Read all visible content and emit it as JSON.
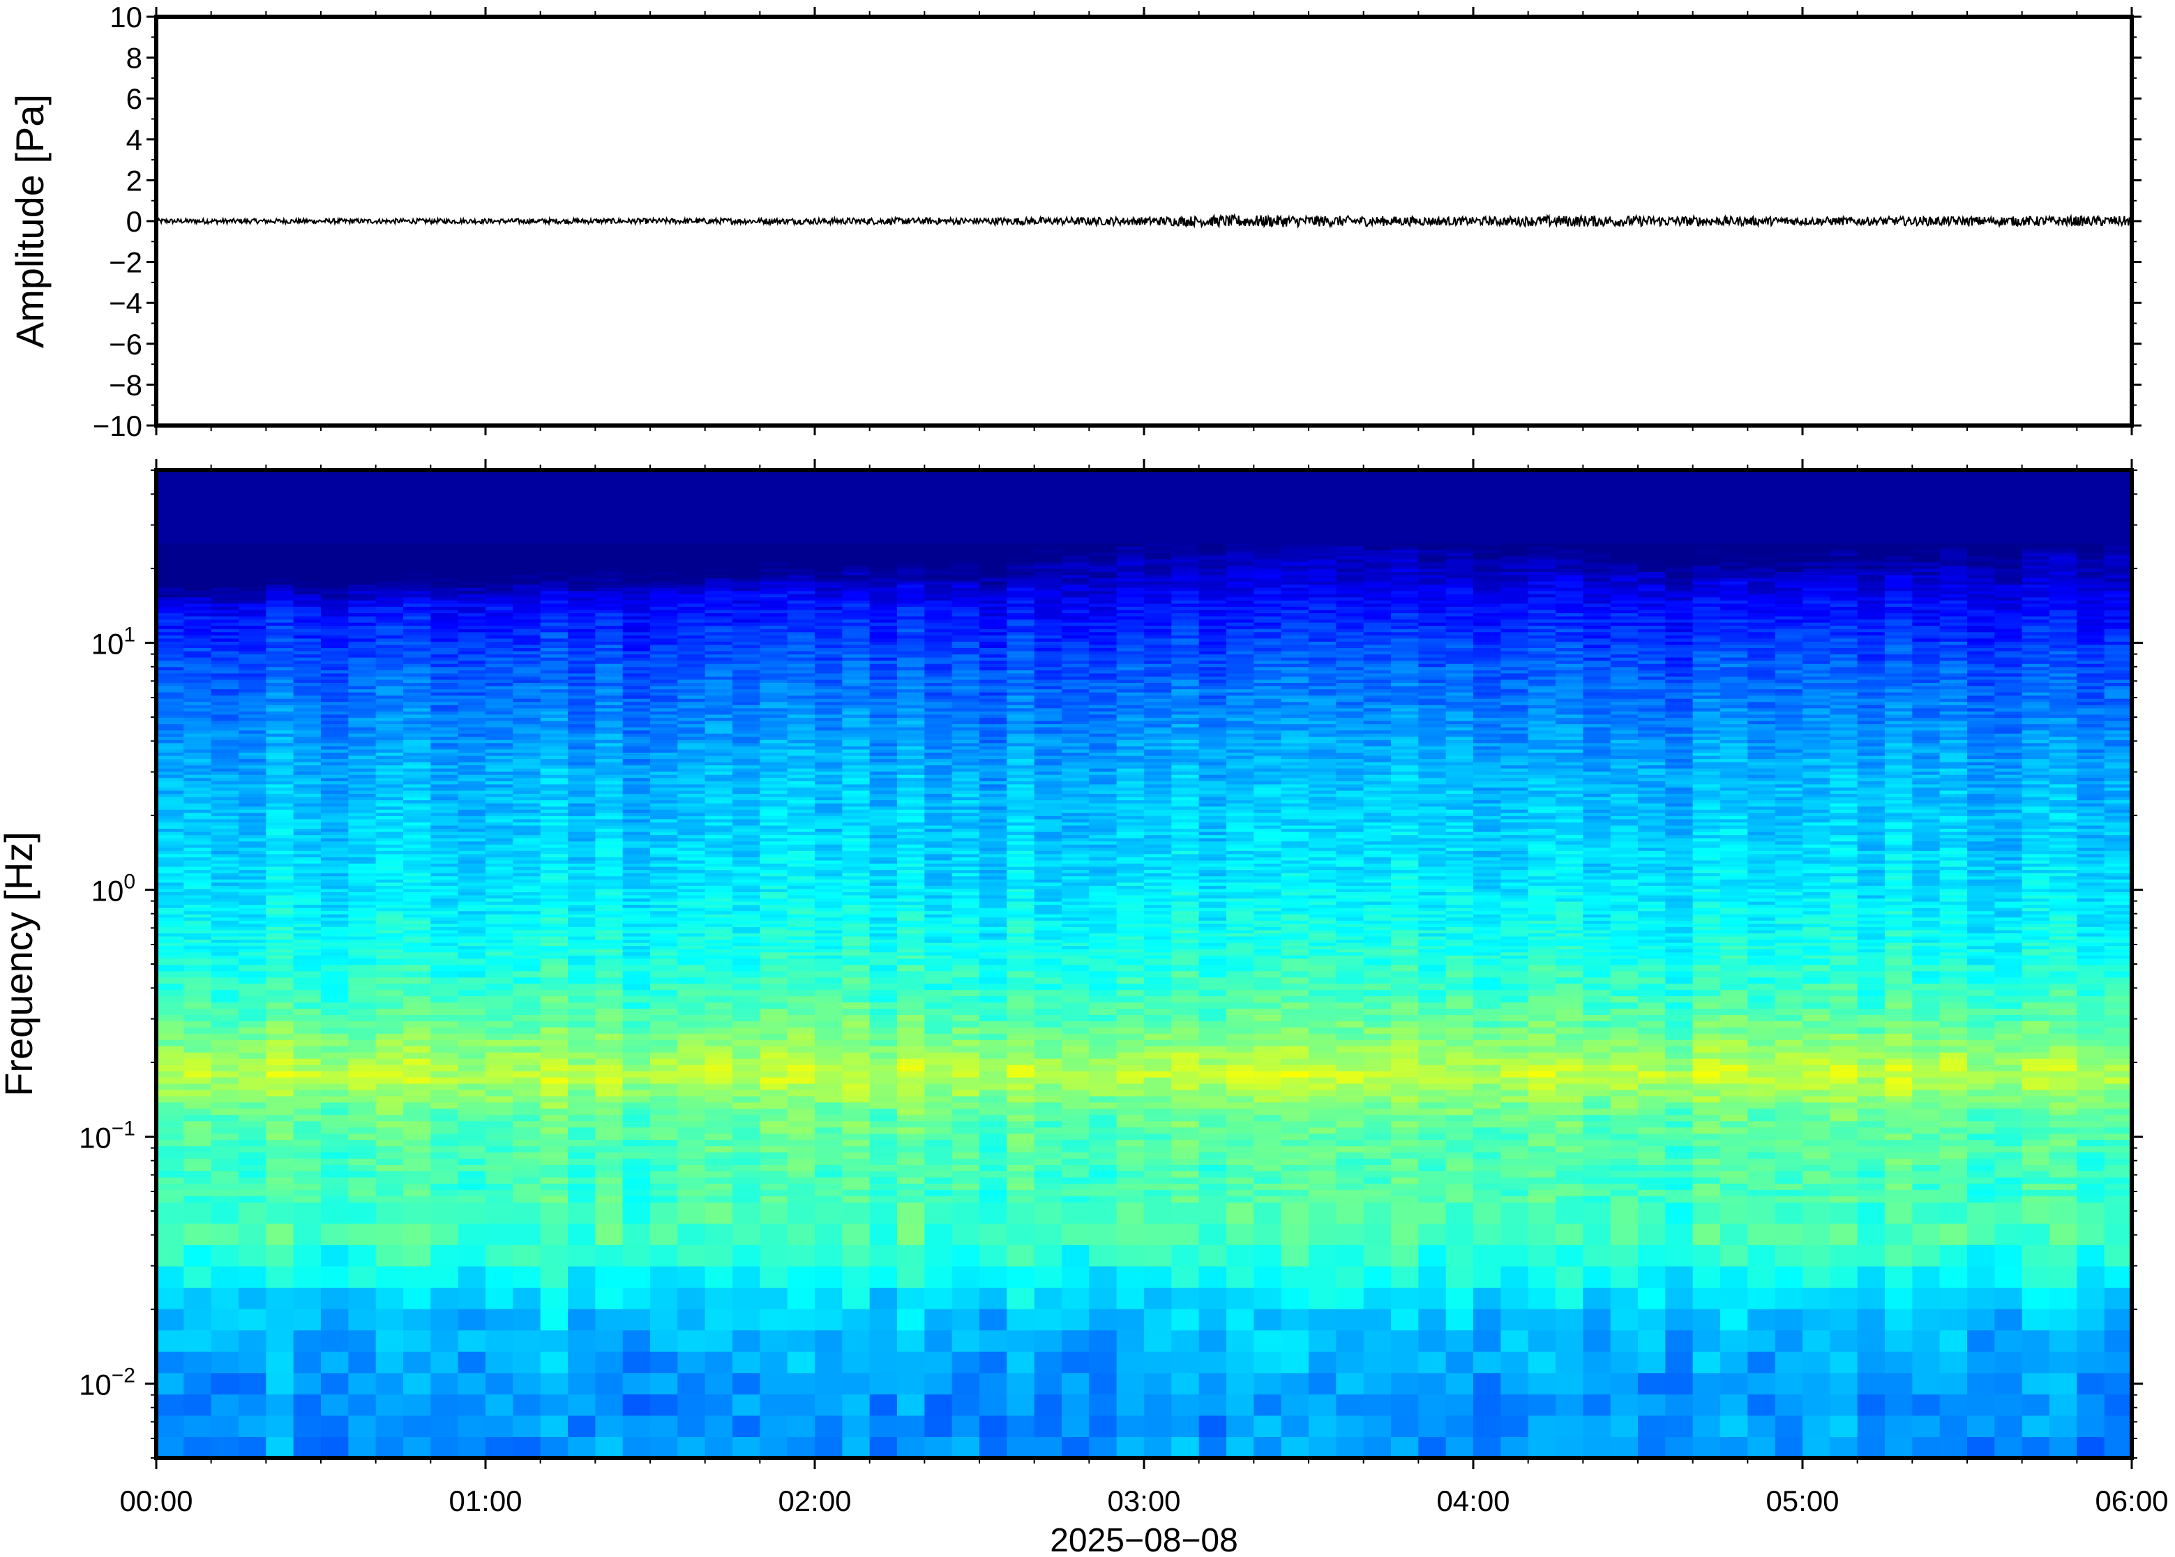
{
  "chart_data": [
    {
      "type": "line",
      "title": "",
      "xlabel": "",
      "ylabel": "Amplitude [Pa]",
      "ylim": [
        -10,
        10
      ],
      "yticks": [
        10,
        8,
        6,
        4,
        2,
        0,
        -2,
        -4,
        -6,
        -8,
        -10
      ],
      "ytick_labels": [
        "10",
        "8",
        "6",
        "4",
        "2",
        "0",
        "−2",
        "−4",
        "−6",
        "−8",
        "−10"
      ],
      "xlim": [
        "2025-08-08 00:00",
        "2025-08-08 06:00"
      ],
      "series": [
        {
          "color": "#000000",
          "description_values": "waveform fluctuating near zero, peak amplitude about 0.3 Pa",
          "envelope": {
            "x_hours": [
              0,
              1,
              2,
              3,
              3.3,
              4,
              4.3,
              5,
              6
            ],
            "amplitude": [
              0.12,
              0.12,
              0.15,
              0.2,
              0.3,
              0.2,
              0.28,
              0.2,
              0.25
            ]
          }
        }
      ],
      "grid": false
    },
    {
      "type": "heatmap",
      "title": "",
      "xlabel": "2025−08−08",
      "ylabel": "Frequency [Hz]",
      "yscale": "log",
      "ylim": [
        0.005,
        50
      ],
      "yticks": [
        10,
        1,
        0.1,
        0.01
      ],
      "ytick_labels": [
        {
          "base": "10",
          "exp": "1"
        },
        {
          "base": "10",
          "exp": "0"
        },
        {
          "base": "10",
          "exp": "−1"
        },
        {
          "base": "10",
          "exp": "−2"
        }
      ],
      "xlim": [
        "2025-08-08 00:00",
        "2025-08-08 06:00"
      ],
      "xticks": [
        "00:00",
        "01:00",
        "02:00",
        "03:00",
        "04:00",
        "05:00",
        "06:00"
      ],
      "colormap": "jet",
      "colors": [
        "#00008f",
        "#0000ff",
        "#0080ff",
        "#00ffff",
        "#80ff80",
        "#ffff00",
        "#ff8000",
        "#800000"
      ],
      "power_profile": {
        "freq_hz": [
          0.005,
          0.01,
          0.02,
          0.04,
          0.07,
          0.12,
          0.18,
          0.25,
          0.4,
          1,
          3,
          8,
          14,
          20,
          50
        ],
        "relative_level": [
          0.3,
          0.31,
          0.37,
          0.5,
          0.5,
          0.53,
          0.64,
          0.56,
          0.48,
          0.4,
          0.34,
          0.24,
          0.15,
          0.06,
          0.06
        ]
      },
      "grid": false
    }
  ]
}
